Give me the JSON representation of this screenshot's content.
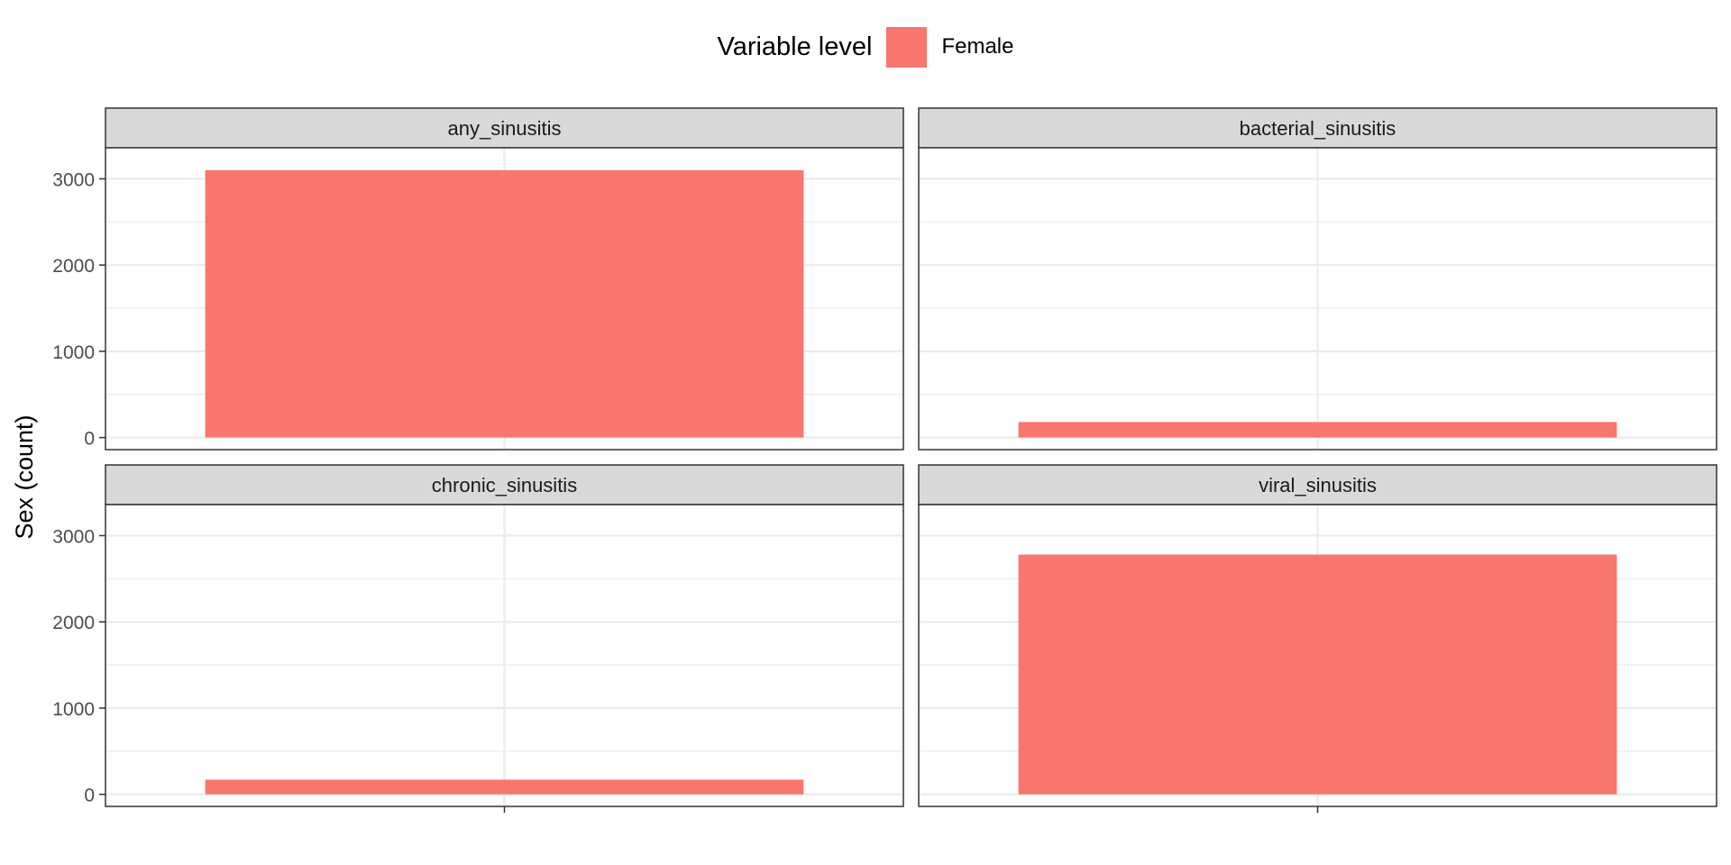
{
  "chart_data": {
    "type": "bar",
    "layout": "facet_wrap",
    "ylabel": "Sex (count)",
    "xlabel": "",
    "legend": {
      "title": "Variable level",
      "position": "top",
      "entries": [
        {
          "name": "Female",
          "color": "#F8766D"
        }
      ]
    },
    "ylim": [
      -140,
      3360
    ],
    "yticks": [
      0,
      1000,
      2000,
      3000
    ],
    "grid": true,
    "facets": [
      {
        "label": "any_sinusitis",
        "value": 3100
      },
      {
        "label": "bacterial_sinusitis",
        "value": 180
      },
      {
        "label": "chronic_sinusitis",
        "value": 170
      },
      {
        "label": "viral_sinusitis",
        "value": 2780
      }
    ]
  }
}
